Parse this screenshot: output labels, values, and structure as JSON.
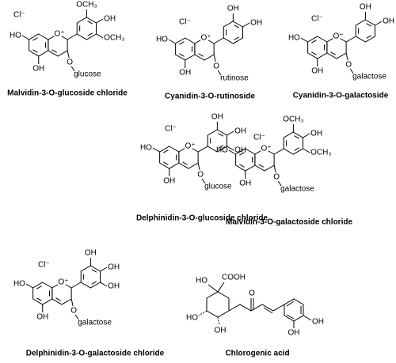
{
  "compounds": [
    {
      "name": "Malvidin-3-O-glucoside chloride",
      "counterion": "Cl⁻",
      "ring_o": "O⁺",
      "r7": "HO",
      "r5": "OH",
      "r3": "O",
      "sugar": "glucose",
      "r3p": "OCH₃",
      "r4p": "OH",
      "r5p": "OCH₃"
    },
    {
      "name": "Cyanidin-3-O-rutinoside",
      "counterion": "Cl⁻",
      "ring_o": "O⁺",
      "r7": "HO",
      "r5": "OH",
      "r3": "O",
      "sugar": "rutinose",
      "r3p": "OH",
      "r4p": "OH"
    },
    {
      "name": "Cyanidin-3-O-galactoside",
      "counterion": "Cl⁻",
      "ring_o": "O⁺",
      "r7": "HO",
      "r5": "OH",
      "r3": "O",
      "sugar": "galactose",
      "r3p": "OH",
      "r4p": "OH"
    },
    {
      "name": "Delphinidin-3-O-glucoside chloride",
      "counterion": "Cl⁻",
      "ring_o": "O⁺",
      "r7": "HO",
      "r5": "OH",
      "r3": "O",
      "sugar": "glucose",
      "r3p": "OH",
      "r4p": "OH",
      "r5p": "OH"
    },
    {
      "name": "Malvidin-3-O-galactoside chloride",
      "counterion": "Cl⁻",
      "ring_o": "O⁺",
      "r7": "HO",
      "r5": "OH",
      "r3": "O",
      "sugar": "galactose",
      "r3p": "OCH₃",
      "r4p": "OH",
      "r5p": "OCH₃"
    },
    {
      "name": "Delphinidin-3-O-galactoside chloride",
      "counterion": "Cl⁻",
      "ring_o": "O⁺",
      "r7": "HO",
      "r5": "OH",
      "r3": "O",
      "sugar": "galactose",
      "r3p": "OH",
      "r4p": "OH",
      "r5p": "OH"
    }
  ],
  "chlorogenic_acid": {
    "name": "Chlorogenic acid",
    "c1_oh": "HO",
    "c1_acid": "COOH",
    "c5_oh": "HO",
    "c4_oh": "OH",
    "keto_o": "O",
    "ar_oh1": "OH",
    "ar_oh2": "OH"
  }
}
